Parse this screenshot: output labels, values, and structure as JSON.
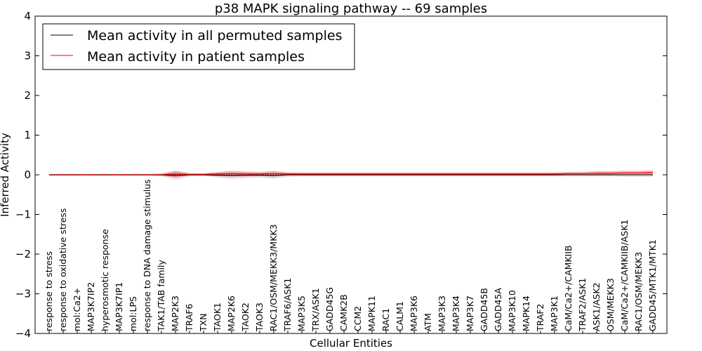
{
  "chart_data": {
    "type": "line",
    "title": "p38 MAPK signaling pathway -- 69 samples",
    "xlabel": "Cellular Entities",
    "ylabel": "Inferred Activity",
    "ylim": [
      -4,
      4
    ],
    "yticks": [
      -4,
      -3,
      -2,
      -1,
      0,
      1,
      2,
      3,
      4
    ],
    "ytick_labels": [
      "−4",
      "−3",
      "−2",
      "−1",
      "0",
      "1",
      "2",
      "3",
      "4"
    ],
    "legend_position": "top-left",
    "categories": [
      "response to stress",
      "response to oxidative stress",
      "mol:Ca2+",
      "MAP3K7IP2",
      "hyperosmotic response",
      "MAP3K7IP1",
      "mol:LPS",
      "response to DNA damage stimulus",
      "TAK1/TAB family",
      "MAP2K3",
      "TRAF6",
      "TXN",
      "TAOK1",
      "MAP2K6",
      "TAOK2",
      "TAOK3",
      "RAC1/OSM/MEKK3/MKK3",
      "TRAF6/ASK1",
      "MAP3K5",
      "TRX/ASK1",
      "GADD45G",
      "CAMK2B",
      "CCM2",
      "MAPK11",
      "RAC1",
      "CALM1",
      "MAP3K6",
      "ATM",
      "MAP3K3",
      "MAP3K4",
      "MAP3K7",
      "GADD45B",
      "GADD45A",
      "MAP3K10",
      "MAPK14",
      "TRAF2",
      "MAP3K1",
      "CaM/Ca2+/CAMKIIB",
      "TRAF2/ASK1",
      "ASK1/ASK2",
      "OSM/MEKK3",
      "CaM/Ca2+/CAMKIIB/ASK1",
      "RAC1/OSM/MEKK3",
      "GADD45/MTK1/MTK1"
    ],
    "series": [
      {
        "name": "Mean activity in all permuted samples",
        "color": "#000000",
        "values": [
          0,
          0,
          0,
          0,
          0,
          0,
          0,
          0,
          0,
          -0.02,
          0,
          0,
          -0.01,
          -0.02,
          -0.01,
          -0.01,
          -0.02,
          0,
          0,
          0,
          0,
          0,
          0,
          0,
          0,
          0,
          0,
          0,
          0,
          0,
          0,
          0,
          0,
          0,
          0,
          0,
          0,
          0,
          0,
          0,
          0,
          0,
          0,
          0
        ],
        "band": [
          0.02,
          0.02,
          0.02,
          0.02,
          0.02,
          0.02,
          0.02,
          0.02,
          0.03,
          0.1,
          0.04,
          0.03,
          0.06,
          0.08,
          0.07,
          0.06,
          0.08,
          0.05,
          0.04,
          0.04,
          0.04,
          0.04,
          0.04,
          0.04,
          0.04,
          0.04,
          0.04,
          0.04,
          0.04,
          0.04,
          0.04,
          0.04,
          0.04,
          0.04,
          0.04,
          0.04,
          0.04,
          0.04,
          0.04,
          0.04,
          0.04,
          0.05,
          0.05,
          0.05
        ]
      },
      {
        "name": "Mean activity in patient samples",
        "color": "#ff0000",
        "values": [
          0,
          0,
          0,
          0,
          0,
          0,
          0,
          0,
          0,
          0.02,
          0.01,
          0.01,
          0.02,
          0.03,
          0.02,
          0.02,
          0.03,
          0.02,
          0.02,
          0.02,
          0.02,
          0.02,
          0.02,
          0.02,
          0.02,
          0.02,
          0.02,
          0.02,
          0.02,
          0.02,
          0.02,
          0.02,
          0.02,
          0.02,
          0.02,
          0.02,
          0.02,
          0.03,
          0.03,
          0.04,
          0.04,
          0.05,
          0.05,
          0.06
        ],
        "band": [
          0.02,
          0.02,
          0.02,
          0.02,
          0.02,
          0.02,
          0.02,
          0.02,
          0.03,
          0.08,
          0.03,
          0.03,
          0.05,
          0.07,
          0.06,
          0.05,
          0.07,
          0.04,
          0.04,
          0.04,
          0.04,
          0.04,
          0.04,
          0.04,
          0.04,
          0.04,
          0.04,
          0.04,
          0.04,
          0.04,
          0.04,
          0.04,
          0.04,
          0.04,
          0.04,
          0.04,
          0.04,
          0.04,
          0.04,
          0.05,
          0.05,
          0.05,
          0.05,
          0.05
        ]
      }
    ]
  }
}
